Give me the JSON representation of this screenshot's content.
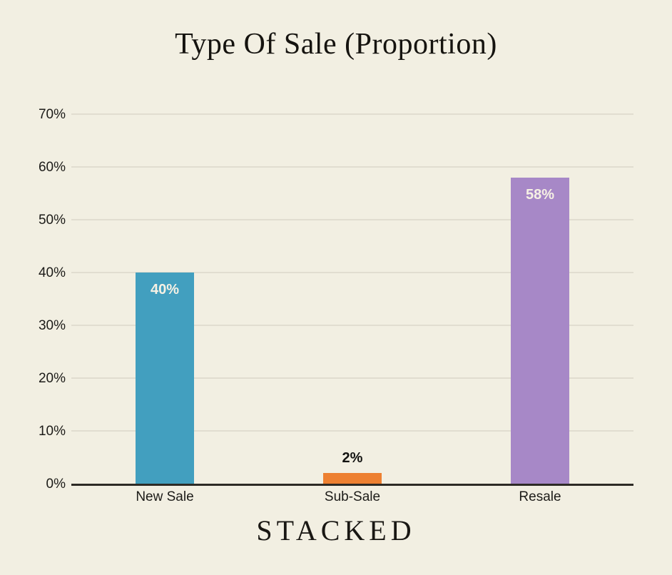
{
  "title": "Type Of Sale (Proportion)",
  "brand": "STACKED",
  "colors": {
    "background": "#f2efe2",
    "gridline": "#e1ddd0",
    "axis_line": "#2d2a25",
    "text": "#1c1b18",
    "value_label_light": "#f6f1e4",
    "value_label_dark": "#121210"
  },
  "chart_data": {
    "type": "bar",
    "title": "Type Of Sale (Proportion)",
    "categories": [
      "New Sale",
      "Sub-Sale",
      "Resale"
    ],
    "values": [
      40,
      2,
      58
    ],
    "value_labels": [
      "40%",
      "2%",
      "58%"
    ],
    "bar_colors": [
      "#429fbf",
      "#ed8031",
      "#a788c7"
    ],
    "value_label_inside": [
      true,
      false,
      true
    ],
    "xlabel": "",
    "ylabel": "",
    "ylim": [
      0,
      70
    ],
    "ytick_values": [
      0,
      10,
      20,
      30,
      40,
      50,
      60,
      70
    ],
    "ytick_labels": [
      "0%",
      "10%",
      "20%",
      "30%",
      "40%",
      "50%",
      "60%",
      "70%"
    ],
    "grid": true,
    "legend": false
  }
}
